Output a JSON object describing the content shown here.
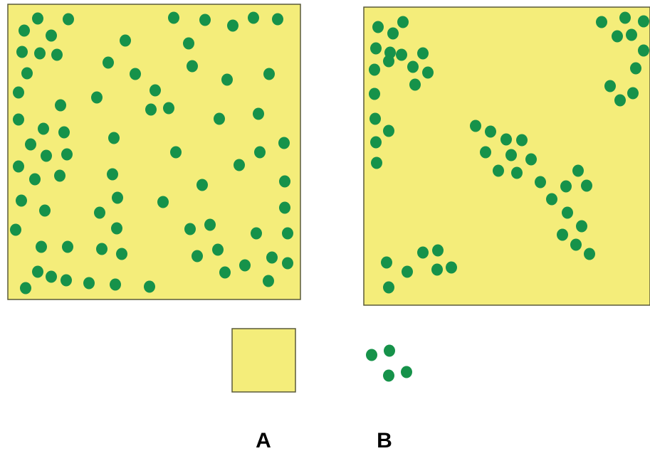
{
  "colors": {
    "field": "#f4ed7a",
    "border": "#5a5a3a",
    "dot": "#16924a"
  },
  "labels": {
    "a": "A",
    "b": "B"
  }
}
